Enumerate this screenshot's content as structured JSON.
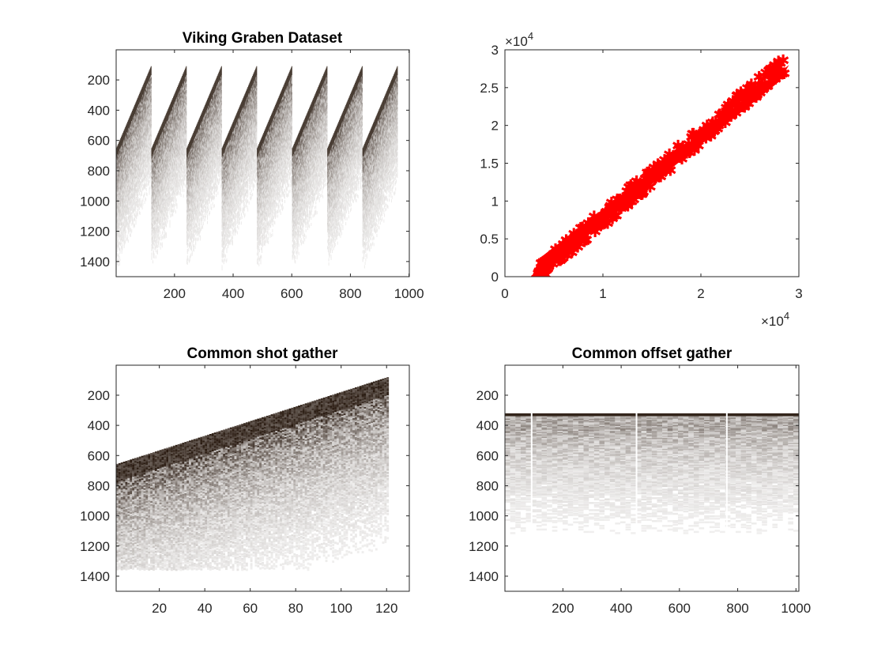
{
  "chart_data": [
    {
      "type": "heatmap",
      "title": "Viking Graben Dataset",
      "xlim": [
        1,
        1001
      ],
      "ylim": [
        1,
        1500
      ],
      "y_reversed": true,
      "xticks": [
        200,
        400,
        600,
        800,
        1000
      ],
      "yticks": [
        200,
        400,
        600,
        800,
        1000,
        1200,
        1400
      ],
      "colormap": "copper-gray",
      "panels": 8,
      "traces_per_panel": 120
    },
    {
      "type": "scatter",
      "title": "",
      "xlim": [
        0,
        30000
      ],
      "ylim": [
        0,
        30000
      ],
      "xticks": [
        0,
        10000,
        20000,
        30000
      ],
      "xtick_labels": [
        "0",
        "1",
        "2",
        "3"
      ],
      "yticks": [
        0,
        5000,
        10000,
        15000,
        20000,
        25000,
        30000
      ],
      "ytick_labels": [
        "0",
        "0.5",
        "1",
        "1.5",
        "2",
        "2.5",
        "3"
      ],
      "x_exponent": "×10",
      "x_exponent_power": "4",
      "y_exponent": "×10",
      "y_exponent_power": "4",
      "marker": "*",
      "color": "#ff0000",
      "x_range": [
        3000,
        28500
      ],
      "y_range": [
        0,
        28000
      ],
      "band_width": 2500
    },
    {
      "type": "heatmap",
      "title": "Common shot gather",
      "xlim": [
        1,
        130
      ],
      "ylim": [
        1,
        1500
      ],
      "y_reversed": true,
      "xticks": [
        20,
        40,
        60,
        80,
        100,
        120
      ],
      "yticks": [
        200,
        400,
        600,
        800,
        1000,
        1200,
        1400
      ],
      "colormap": "copper-gray",
      "traces": 120
    },
    {
      "type": "heatmap",
      "title": "Common offset gather",
      "xlim": [
        1,
        1010
      ],
      "ylim": [
        1,
        1500
      ],
      "y_reversed": true,
      "xticks": [
        200,
        400,
        600,
        800,
        1000
      ],
      "yticks": [
        200,
        400,
        600,
        800,
        1000,
        1200,
        1400
      ],
      "colormap": "copper-gray",
      "first_arrival_time": 320
    }
  ]
}
